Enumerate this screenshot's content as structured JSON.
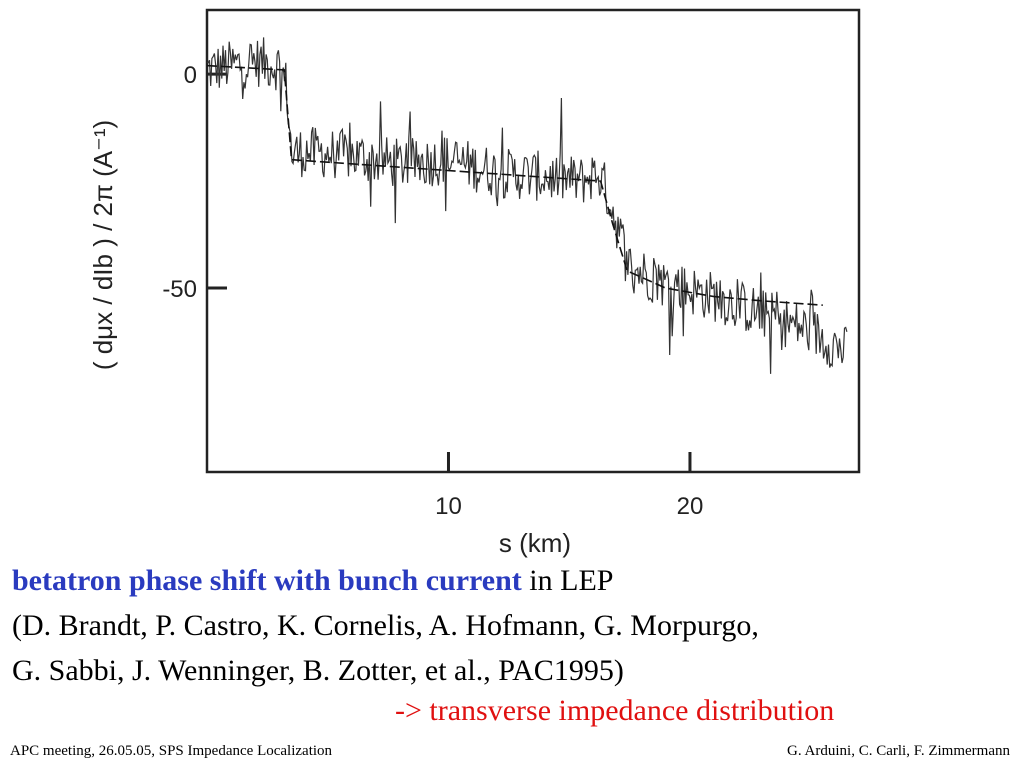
{
  "chart_data": {
    "type": "line",
    "title": "",
    "xlabel": "s (km)",
    "ylabel": "( dμx / dIb ) / 2π  (A⁻¹)",
    "xlim": [
      0,
      27
    ],
    "ylim": [
      -93,
      15
    ],
    "x_ticks": [
      10,
      20
    ],
    "y_ticks": [
      0,
      -50
    ],
    "grid": false,
    "series": [
      {
        "style": "measured-noisy",
        "x": [
          0,
          1,
          2,
          3,
          3.3,
          3.5,
          4,
          6,
          8,
          10,
          12,
          14,
          15.5,
          16.2,
          16.6,
          17.5,
          19,
          21,
          23,
          25,
          26.5
        ],
        "y": [
          1,
          2,
          3,
          2,
          -3,
          -19,
          -18,
          -19,
          -21,
          -20,
          -23,
          -24,
          -25,
          -23,
          -28,
          -45,
          -49,
          -52,
          -56,
          -60,
          -65
        ]
      },
      {
        "style": "fit-piecewise",
        "x": [
          0,
          3.2,
          3.5,
          16.3,
          16.8,
          17.4,
          19,
          21,
          23,
          25.5
        ],
        "y": [
          2,
          1,
          -20,
          -25,
          -35,
          -46,
          -50,
          -52,
          -53,
          -54
        ]
      }
    ]
  },
  "caption": {
    "highlight": "betatron phase shift with bunch current",
    "line1_rest": " in LEP",
    "line2": "(D. Brandt, P. Castro, K. Cornelis, A. Hofmann, G. Morpurgo,",
    "line3": "G. Sabbi, J. Wenninger, B. Zotter, et al., PAC1995)",
    "arrow_line": "-> transverse impedance distribution",
    "arrow_color": "#e01010",
    "highlight_color": "#2a3bbf"
  },
  "footer": {
    "left": "APC meeting, 26.05.05, SPS Impedance Localization",
    "right": "G. Arduini, C. Carli, F. Zimmermann"
  }
}
